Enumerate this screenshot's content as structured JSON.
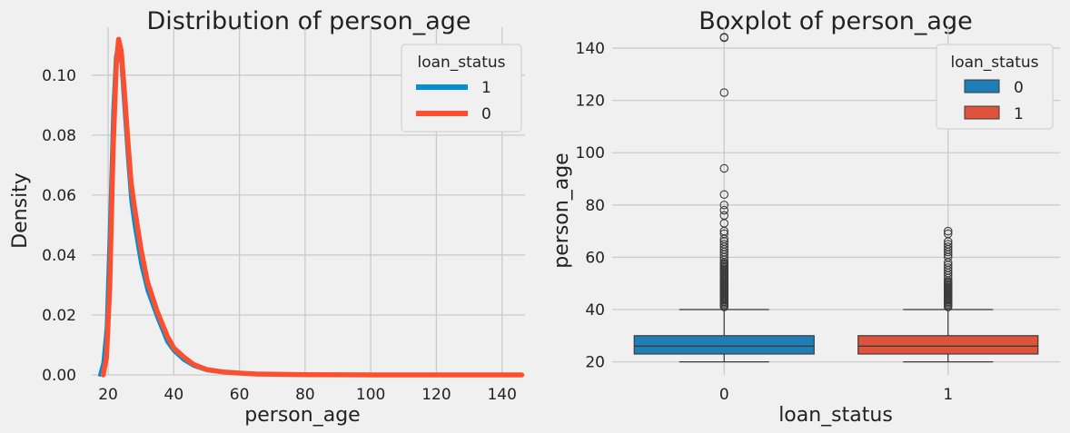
{
  "colors": {
    "background": "#f0f0f0",
    "grid": "#cbcbcb",
    "series_blue": "#008fd5",
    "series_red": "#fc4f30",
    "box_blue": "#1f7eb8",
    "box_red": "#e0533b",
    "box_edge": "#3a3a3a"
  },
  "chart_data": [
    {
      "type": "line",
      "title": "Distribution of person_age",
      "xlabel": "person_age",
      "ylabel": "Density",
      "xlim": [
        15,
        147
      ],
      "ylim": [
        0,
        0.116
      ],
      "xticks": [
        20,
        40,
        60,
        80,
        100,
        120,
        140
      ],
      "yticks": [
        0.0,
        0.02,
        0.04,
        0.06,
        0.08,
        0.1
      ],
      "ytick_labels": [
        "0.00",
        "0.02",
        "0.04",
        "0.06",
        "0.08",
        "0.10"
      ],
      "grid": true,
      "legend": {
        "title": "loan_status",
        "position": "top-right",
        "entries": [
          "1",
          "0"
        ]
      },
      "series": [
        {
          "name": "1",
          "color": "series_blue",
          "x": [
            17.5,
            18.5,
            19.5,
            20.5,
            21.5,
            22.3,
            23,
            24,
            25,
            26,
            27,
            28,
            30,
            32,
            35,
            38,
            40,
            43,
            46,
            50,
            55,
            60,
            65,
            70,
            80,
            100,
            120,
            144
          ],
          "y": [
            0.0,
            0.004,
            0.016,
            0.05,
            0.088,
            0.106,
            0.11,
            0.104,
            0.088,
            0.072,
            0.058,
            0.05,
            0.037,
            0.028,
            0.019,
            0.011,
            0.008,
            0.005,
            0.003,
            0.0015,
            0.0008,
            0.0006,
            0.0003,
            0.0002,
            0.0001,
            0.0,
            0.0,
            0.0
          ]
        },
        {
          "name": "0",
          "color": "series_red",
          "x": [
            18.5,
            19.5,
            20.5,
            21.5,
            22.5,
            23.2,
            24,
            25,
            26,
            27,
            28,
            30,
            32,
            35,
            38,
            40,
            43,
            46,
            50,
            55,
            60,
            65,
            70,
            80,
            100,
            120,
            146
          ],
          "y": [
            0.0,
            0.006,
            0.03,
            0.075,
            0.104,
            0.112,
            0.108,
            0.094,
            0.078,
            0.064,
            0.056,
            0.042,
            0.031,
            0.021,
            0.013,
            0.009,
            0.006,
            0.0035,
            0.0018,
            0.001,
            0.0006,
            0.0003,
            0.0002,
            0.0001,
            0.0,
            0.0,
            0.0
          ]
        }
      ]
    },
    {
      "type": "box",
      "title": "Boxplot of person_age",
      "xlabel": "loan_status",
      "ylabel": "person_age",
      "ylim": [
        15,
        148
      ],
      "yticks": [
        20,
        40,
        60,
        80,
        100,
        120,
        140
      ],
      "grid": true,
      "legend": {
        "title": "loan_status",
        "position": "top-right",
        "entries": [
          "0",
          "1"
        ]
      },
      "categories": [
        "0",
        "1"
      ],
      "boxes": [
        {
          "category": "0",
          "color": "box_blue",
          "whisker_low": 20,
          "q1": 23,
          "median": 26,
          "q3": 30,
          "whisker_high": 40,
          "outliers": [
            41,
            41.5,
            42,
            42.5,
            43,
            43.5,
            44,
            44.5,
            45,
            45.5,
            46,
            46.5,
            47,
            47.5,
            48,
            48.5,
            49,
            49.5,
            50,
            50.5,
            51,
            51.5,
            52,
            52.5,
            53,
            53.5,
            54,
            54.5,
            55,
            55.5,
            56,
            56.5,
            57,
            57.5,
            58,
            59,
            60,
            61,
            62,
            63,
            64,
            65,
            66,
            67,
            69,
            70,
            73,
            76,
            78,
            80,
            84,
            94,
            123,
            144,
            144.2
          ]
        },
        {
          "category": "1",
          "color": "box_red",
          "whisker_low": 20,
          "q1": 23,
          "median": 26,
          "q3": 30,
          "whisker_high": 40,
          "outliers": [
            41,
            41.5,
            42,
            42.5,
            43,
            43.5,
            44,
            44.5,
            45,
            45.5,
            46,
            46.5,
            47,
            47.5,
            48,
            48.5,
            49,
            49.5,
            50,
            50.5,
            51,
            52,
            53,
            54,
            55,
            56,
            57,
            58,
            60,
            61,
            62,
            63,
            64,
            65,
            66,
            69,
            70
          ]
        }
      ]
    }
  ]
}
